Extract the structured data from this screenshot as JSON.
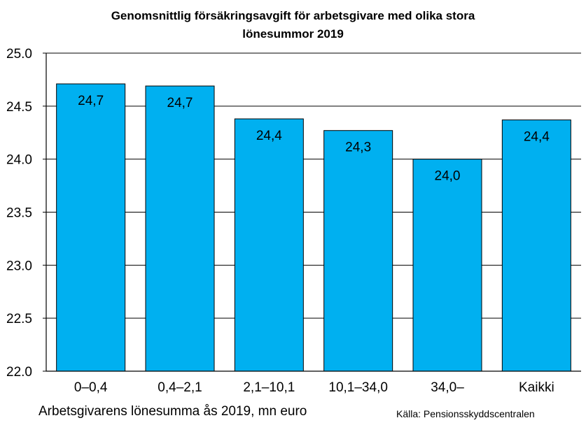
{
  "chart_data": {
    "type": "bar",
    "title_lines": [
      "Genomsnittlig försäkringsavgift för arbetsgivare med olika stora",
      "lönesummor 2019"
    ],
    "categories": [
      "0–0,4",
      "0,4–2,1",
      "2,1–10,1",
      "10,1–34,0",
      "34,0–",
      "Kaikki"
    ],
    "values": [
      24.71,
      24.69,
      24.38,
      24.27,
      24.0,
      24.37
    ],
    "data_labels": [
      "24,7",
      "24,7",
      "24,4",
      "24,3",
      "24,0",
      "24,4"
    ],
    "xlabel": "Arbetsgivarens lönesumma ås 2019, mn euro",
    "ylabel": "",
    "ylim": [
      22.0,
      25.0
    ],
    "yticks": [
      22.0,
      22.5,
      23.0,
      23.5,
      24.0,
      24.5,
      25.0
    ],
    "ytick_labels": [
      "22.0",
      "22.5",
      "23.0",
      "23.5",
      "24.0",
      "24.5",
      "25.0"
    ],
    "grid": true,
    "bar_color": "#00B0F0",
    "source": "Källa: Pensionsskyddscentralen"
  }
}
